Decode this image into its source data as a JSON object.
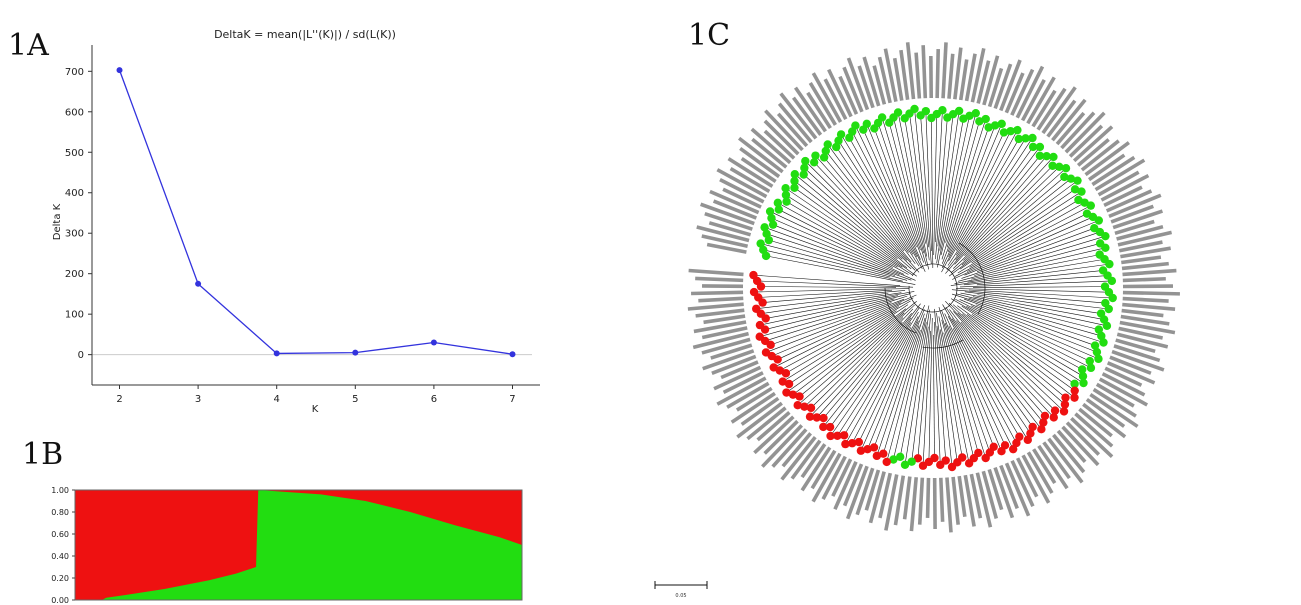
{
  "panels": {
    "a_label": "1A",
    "b_label": "1B",
    "c_label": "1C"
  },
  "colors": {
    "line": "#3333dd",
    "cluster1": "#ee1111",
    "cluster2": "#22dd11",
    "axis": "#333333",
    "tree": "#111111"
  },
  "chart_data": [
    {
      "type": "line",
      "title": "DeltaK = mean(|L''(K)|) / sd(L(K))",
      "xlabel": "K",
      "ylabel": "Delta K",
      "x": [
        2,
        3,
        4,
        5,
        6,
        7
      ],
      "series": [
        {
          "values": [
            703,
            175,
            3,
            5,
            30,
            1
          ]
        }
      ],
      "xlim": [
        1.65,
        7.35
      ],
      "ylim": [
        -75,
        765
      ],
      "xticks": [
        "2",
        "3",
        "4",
        "5",
        "6",
        "7"
      ],
      "yticks": [
        "0",
        "100",
        "200",
        "300",
        "400",
        "500",
        "600",
        "700"
      ],
      "reference_line": 0
    },
    {
      "type": "area",
      "ylim": [
        0,
        1
      ],
      "yticks": [
        "0.00",
        "0.20",
        "0.40",
        "0.60",
        "0.80",
        "1.00"
      ],
      "stacked": true,
      "n_individuals": 120,
      "group_boundary_fraction": 0.41,
      "green_share_by_position": [
        {
          "p": 0.0,
          "v": 0.0
        },
        {
          "p": 0.06,
          "v": 0.0
        },
        {
          "p": 0.07,
          "v": 0.02
        },
        {
          "p": 0.12,
          "v": 0.05
        },
        {
          "p": 0.2,
          "v": 0.1
        },
        {
          "p": 0.3,
          "v": 0.18
        },
        {
          "p": 0.36,
          "v": 0.24
        },
        {
          "p": 0.405,
          "v": 0.3
        },
        {
          "p": 0.41,
          "v": 1.0
        },
        {
          "p": 0.55,
          "v": 0.96
        },
        {
          "p": 0.65,
          "v": 0.9
        },
        {
          "p": 0.75,
          "v": 0.8
        },
        {
          "p": 0.85,
          "v": 0.68
        },
        {
          "p": 0.95,
          "v": 0.57
        },
        {
          "p": 1.0,
          "v": 0.5
        }
      ]
    },
    {
      "type": "tree",
      "layout": "circular",
      "scale_label": "0.05",
      "clusters": [
        "green",
        "red"
      ],
      "leaf_arcs": [
        {
          "from": -170,
          "to": -70,
          "color": "green"
        },
        {
          "from": -70,
          "to": -5,
          "color": "green"
        },
        {
          "from": -5,
          "to": 35,
          "color": "green"
        },
        {
          "from": 35,
          "to": 70,
          "color": "red"
        },
        {
          "from": 70,
          "to": 96,
          "color": "red"
        },
        {
          "from": 96,
          "to": 104,
          "color": "green"
        },
        {
          "from": 104,
          "to": 185,
          "color": "red"
        }
      ]
    }
  ]
}
